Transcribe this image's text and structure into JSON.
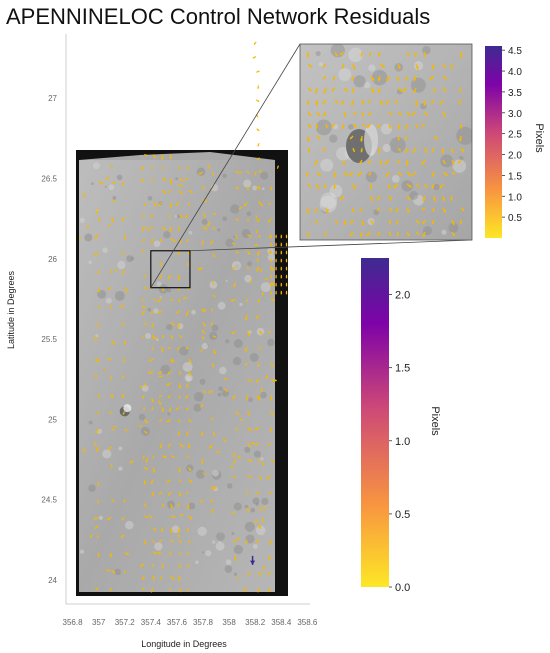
{
  "chart_data": {
    "type": "scatter",
    "title": "APENNINELOC Control Network Residuals",
    "xlabel": "Longitude in Degrees",
    "ylabel": "Latitude in Degrees",
    "xticks": [
      "356.8",
      "357",
      "357.2",
      "357.4",
      "357.6",
      "357.8",
      "358",
      "358.2",
      "358.4",
      "358.6"
    ],
    "yticks": [
      "24",
      "24.5",
      "25",
      "25.5",
      "26",
      "26.5",
      "27"
    ],
    "xlim": [
      356.75,
      358.62
    ],
    "ylim": [
      23.85,
      27.4
    ],
    "grid": false,
    "image_extent": {
      "lon": [
        356.8,
        358.5
      ],
      "lat": [
        23.9,
        26.75
      ]
    },
    "inset_region": {
      "lon": [
        357.4,
        357.7
      ],
      "lat": [
        25.82,
        26.05
      ]
    },
    "vector_color": "#f5b800",
    "outlier_color": "#3b2a8f",
    "highlighted_outlier": {
      "lon": 358.18,
      "lat": 24.1,
      "residual_pixels": 2.2
    },
    "colorbar_main": {
      "label": "Pixels",
      "ticks": [
        "0.0",
        "0.5",
        "1.0",
        "1.5",
        "2.0"
      ],
      "range": [
        0,
        2.25
      ],
      "colors": [
        "#fde725",
        "#f89540",
        "#cc4778",
        "#7e03a8",
        "#3f2b91"
      ]
    },
    "colorbar_inset": {
      "label": "Pixels",
      "ticks": [
        "0.5",
        "1.0",
        "1.5",
        "2.0",
        "2.5",
        "3.0",
        "3.5",
        "4.0",
        "4.5"
      ],
      "range": [
        0,
        4.6
      ],
      "colors": [
        "#fde725",
        "#f89540",
        "#cc4778",
        "#7e03a8",
        "#3f2b91"
      ]
    }
  }
}
